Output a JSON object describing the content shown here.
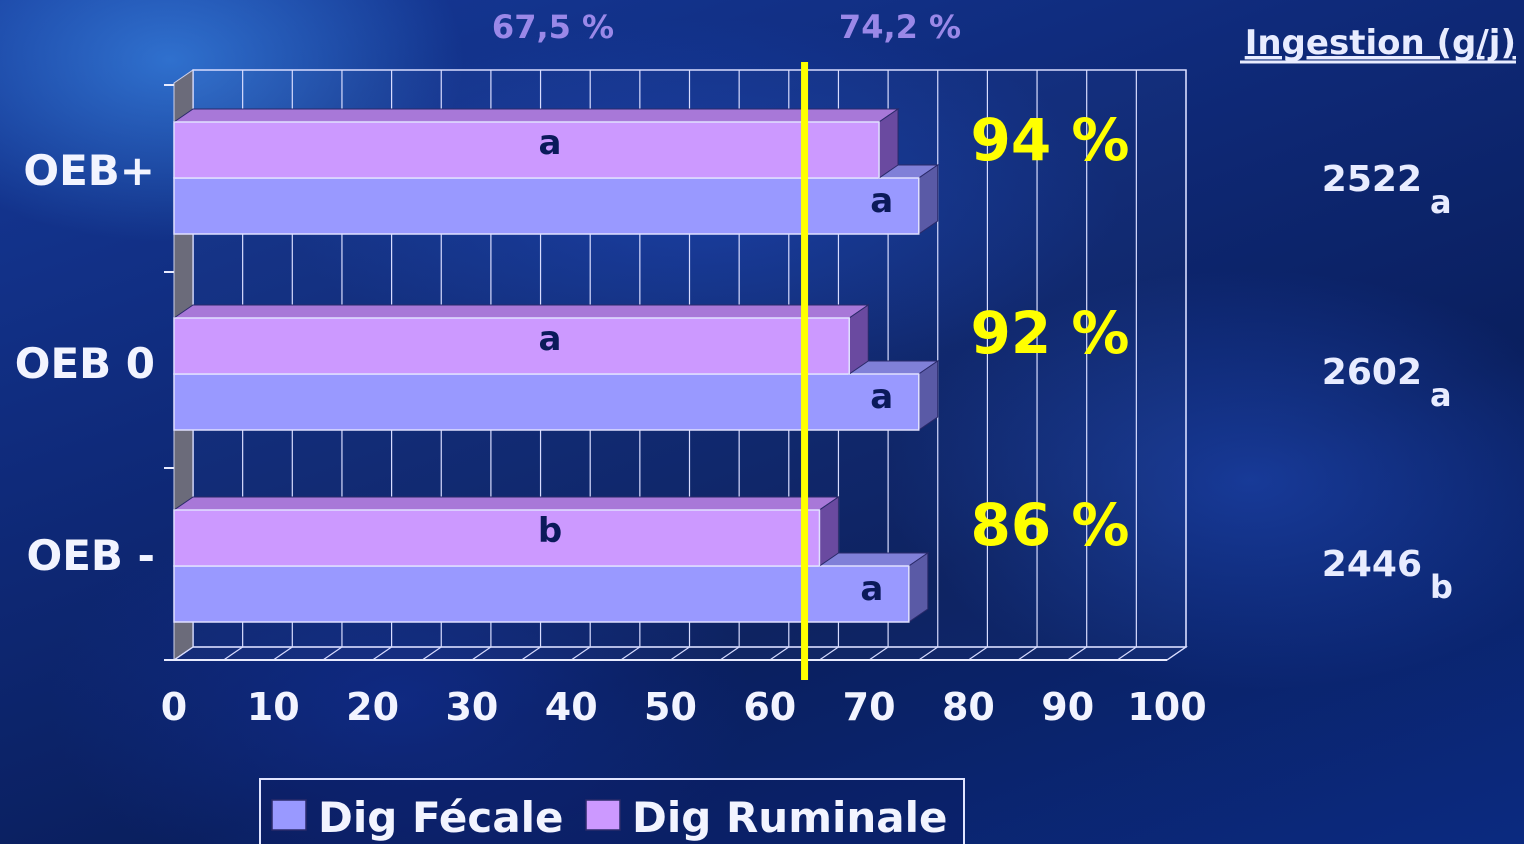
{
  "chart_data": {
    "type": "bar",
    "orientation": "horizontal",
    "categories": [
      "OEB -",
      "OEB 0",
      "OEB+"
    ],
    "series": [
      {
        "name": "Dig Fécale",
        "values": [
          74,
          75,
          75
        ],
        "letters": [
          "a",
          "a",
          "a"
        ],
        "color": "#9999ff"
      },
      {
        "name": "Dig Ruminale",
        "values": [
          65,
          68,
          71
        ],
        "letters": [
          "b",
          "a",
          "a"
        ],
        "color": "#cc99ff"
      }
    ],
    "xlim": [
      0,
      100
    ],
    "xticks": [
      "0",
      "10",
      "20",
      "30",
      "40",
      "50",
      "60",
      "70",
      "80",
      "90",
      "100"
    ],
    "reference_line": {
      "x": 63.5,
      "color": "#ffff00"
    },
    "ratio_labels": [
      "86 %",
      "92 %",
      "94 %"
    ],
    "top_labels": [
      "67,5 %",
      "74,2 %"
    ],
    "ingestion": {
      "title": "Ingestion (g/j)",
      "values": [
        "2446",
        "2602",
        "2522"
      ],
      "letters": [
        "b",
        "a",
        "a"
      ]
    },
    "legend": {
      "placement": "bottom-center"
    },
    "grid": true
  }
}
